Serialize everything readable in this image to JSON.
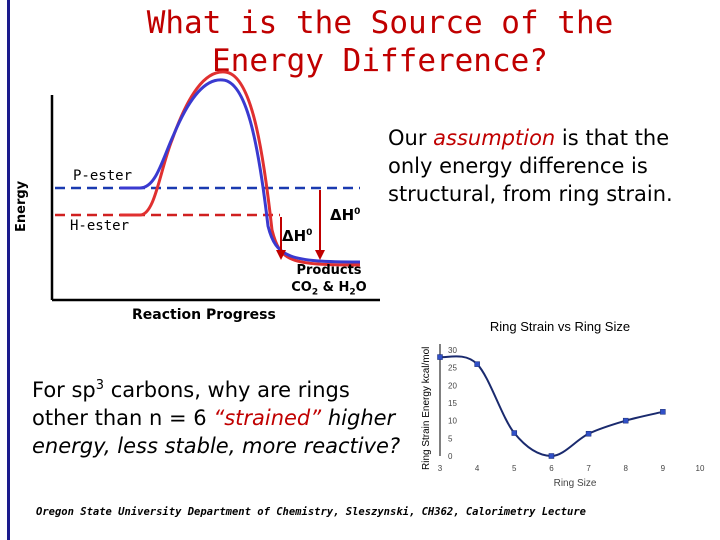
{
  "title": {
    "line1": "What is the Source of the",
    "line2": "Energy Difference?"
  },
  "diagram": {
    "y_axis_label": "Energy",
    "x_axis_label": "Reaction Progress",
    "p_ester_label": "P-ester",
    "h_ester_label": "H-ester",
    "delta_h_symbol": "ΔH",
    "delta_h_superscript": "0",
    "products_line1": "Products",
    "products_line2": "CO2 & H2O",
    "colors": {
      "curve_red": "#e03030",
      "curve_blue": "#3a3ad0",
      "dash_blue": "#1a3ab0",
      "dash_red": "#d02020",
      "arrow": "#c00000"
    }
  },
  "assumption": {
    "prefix": "Our ",
    "emphasis": "assumption",
    "suffix": " is that the only energy difference is structural, from ring strain."
  },
  "question": {
    "part1": "For sp",
    "superscript": "3",
    "part2": " carbons, why are rings other than n = 6 ",
    "strained": "“strained”",
    "part3": " higher energy, less stable, more reactive?"
  },
  "chart_data": {
    "type": "line",
    "title": "Ring Strain vs Ring Size",
    "xlabel": "Ring Size",
    "ylabel": "Ring Strain Energy kcal/mol",
    "x": [
      3,
      4,
      5,
      6,
      7,
      8,
      9
    ],
    "series": [
      {
        "values": [
          28,
          26,
          6.5,
          0,
          6.3,
          10,
          12.5
        ]
      }
    ],
    "xlim": [
      3,
      10
    ],
    "ylim": [
      0,
      30
    ],
    "xticks": [
      "3",
      "4",
      "5",
      "6",
      "7",
      "8",
      "9",
      "10"
    ],
    "yticks": [
      "0",
      "5",
      "10",
      "15",
      "20",
      "25",
      "30"
    ],
    "color": "#1a2a6e",
    "marker_color": "#3050c8",
    "grid": false,
    "legend": "none"
  },
  "footer": "Oregon State University Department of Chemistry, Sleszynski, CH362, Calorimetry Lecture"
}
